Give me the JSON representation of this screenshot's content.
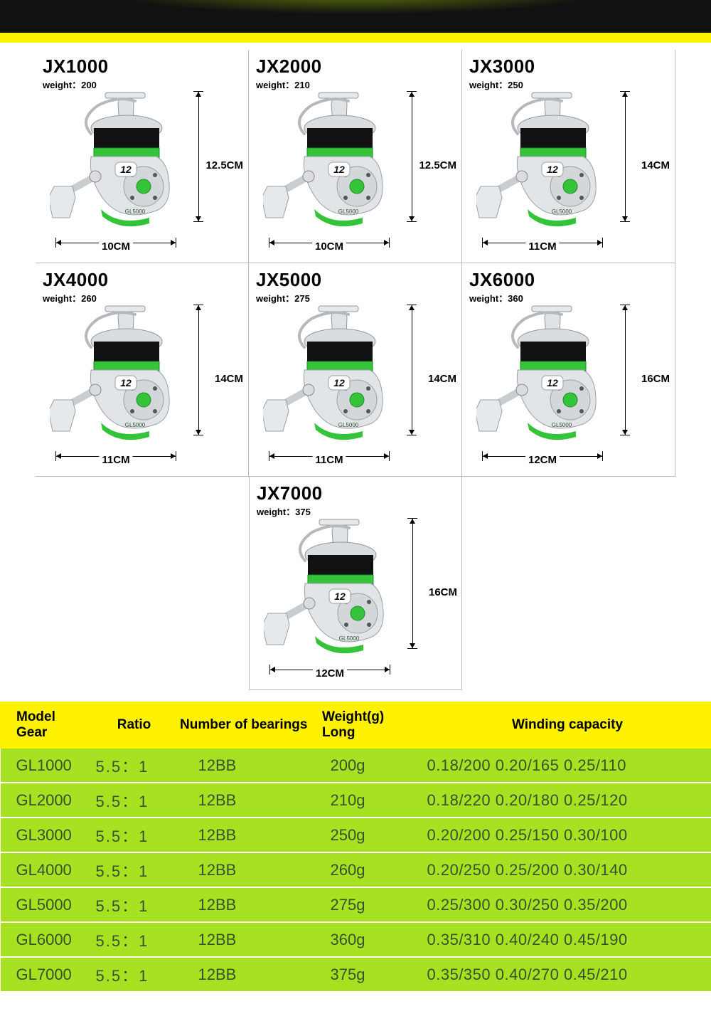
{
  "colors": {
    "banner_bg": "#111111",
    "banner_strip": "#fff200",
    "table_header_bg": "#fff200",
    "table_header_fg": "#000000",
    "table_row_bg": "#a6e221",
    "table_row_fg": "#30542e",
    "reel_body": "#d9dde0",
    "reel_body_shade": "#b8bcc0",
    "reel_green": "#35c33a",
    "reel_green_dark": "#1f8c2b",
    "reel_black": "#111111"
  },
  "reel_badge": "12",
  "reel_label": "GL5000",
  "cards": [
    {
      "model": "JX1000",
      "weight_label": "weight：200",
      "height": "12.5CM",
      "width": "10CM"
    },
    {
      "model": "JX2000",
      "weight_label": "weight：210",
      "height": "12.5CM",
      "width": "10CM"
    },
    {
      "model": "JX3000",
      "weight_label": "weight：250",
      "height": "14CM",
      "width": "11CM"
    },
    {
      "model": "JX4000",
      "weight_label": "weight：260",
      "height": "14CM",
      "width": "11CM"
    },
    {
      "model": "JX5000",
      "weight_label": "weight：275",
      "height": "14CM",
      "width": "11CM"
    },
    {
      "model": "JX6000",
      "weight_label": "weight：360",
      "height": "16CM",
      "width": "12CM"
    },
    {
      "model": "JX7000",
      "weight_label": "weight：375",
      "height": "16CM",
      "width": "12CM"
    }
  ],
  "table": {
    "headers": {
      "model": "Model Gear",
      "ratio": "Ratio",
      "bearings": "Number of bearings",
      "weight": "Weight(g) Long",
      "winding": "Winding capacity"
    },
    "rows": [
      {
        "model": "GL1000",
        "ratio": "5.5：1",
        "bearings": "12BB",
        "weight": "200g",
        "winding": "0.18/200 0.20/165 0.25/110"
      },
      {
        "model": "GL2000",
        "ratio": "5.5：1",
        "bearings": "12BB",
        "weight": "210g",
        "winding": "0.18/220 0.20/180 0.25/120"
      },
      {
        "model": "GL3000",
        "ratio": "5.5：1",
        "bearings": "12BB",
        "weight": "250g",
        "winding": "0.20/200 0.25/150 0.30/100"
      },
      {
        "model": "GL4000",
        "ratio": "5.5：1",
        "bearings": "12BB",
        "weight": "260g",
        "winding": "0.20/250 0.25/200 0.30/140"
      },
      {
        "model": "GL5000",
        "ratio": "5.5：1",
        "bearings": "12BB",
        "weight": "275g",
        "winding": "0.25/300 0.30/250 0.35/200"
      },
      {
        "model": "GL6000",
        "ratio": "5.5：1",
        "bearings": "12BB",
        "weight": "360g",
        "winding": "0.35/310 0.40/240 0.45/190"
      },
      {
        "model": "GL7000",
        "ratio": "5.5：1",
        "bearings": "12BB",
        "weight": "375g",
        "winding": "0.35/350 0.40/270 0.45/210"
      }
    ]
  }
}
